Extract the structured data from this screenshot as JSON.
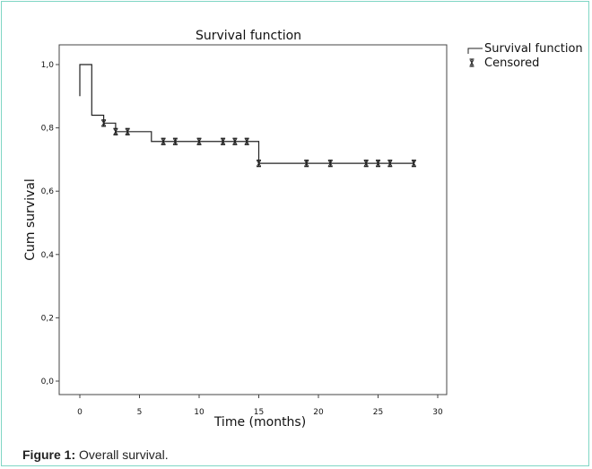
{
  "chart_data": {
    "type": "line",
    "title": "Survival function",
    "xlabel": "Time (months)",
    "ylabel": "Cum survival",
    "xlim": [
      0,
      30
    ],
    "ylim": [
      0,
      1
    ],
    "x_ticks": [
      "0",
      "5",
      "10",
      "15",
      "20",
      "25",
      "30"
    ],
    "y_ticks": [
      "0,0",
      "0,2",
      "0,4",
      "0,6",
      "0,8",
      "1,0"
    ],
    "grid": false,
    "legend_position": "outside-top-right",
    "legend": [
      "Survival function",
      "Censored"
    ],
    "series": [
      {
        "name": "Survival function",
        "step_x": [
          0,
          1,
          2,
          3,
          6,
          15,
          28
        ],
        "step_y": [
          1.0,
          0.84,
          0.815,
          0.788,
          0.757,
          0.688,
          0.688
        ]
      },
      {
        "name": "Censored",
        "x": [
          2,
          3,
          4,
          7,
          8,
          10,
          12,
          13,
          14,
          15,
          19,
          21,
          24,
          25,
          26,
          28
        ],
        "y": [
          0.815,
          0.788,
          0.788,
          0.757,
          0.757,
          0.757,
          0.757,
          0.757,
          0.757,
          0.688,
          0.688,
          0.688,
          0.688,
          0.688,
          0.688,
          0.688
        ]
      }
    ]
  },
  "caption": {
    "label": "Figure 1:",
    "text": " Overall survival."
  }
}
